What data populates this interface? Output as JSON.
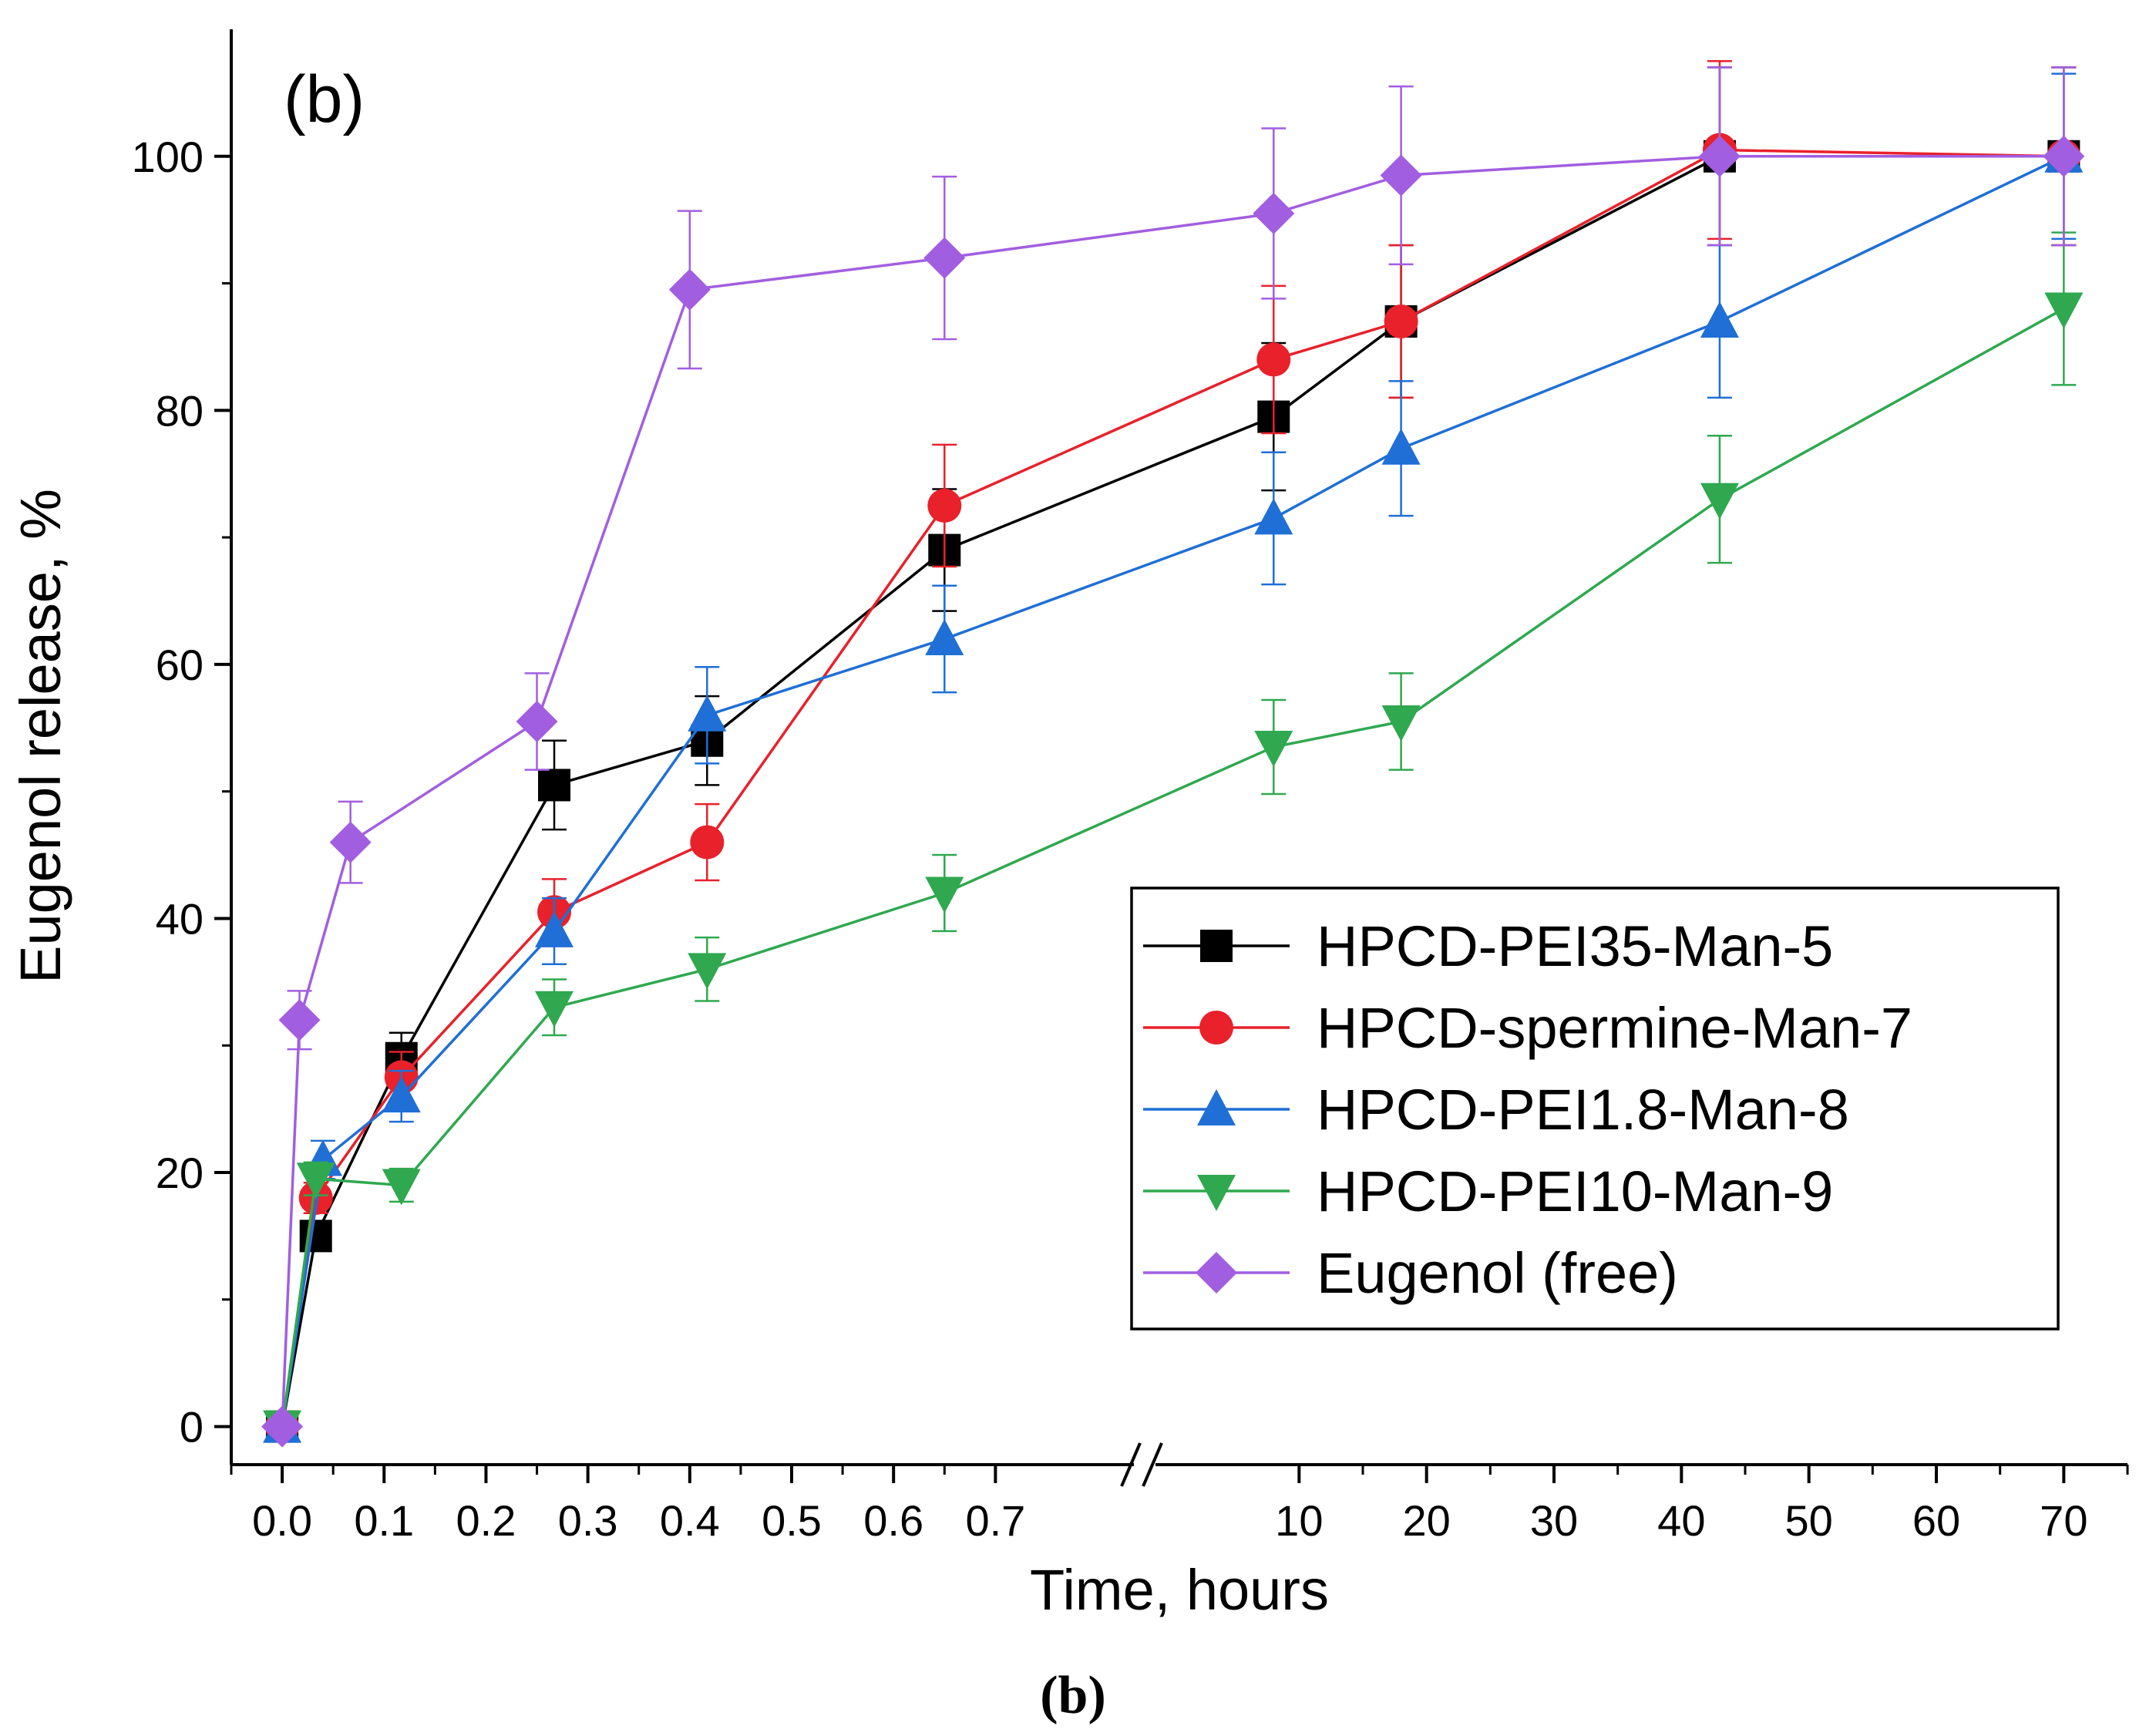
{
  "chart_data": {
    "type": "line",
    "panel_label": "(b)",
    "caption": "(b)",
    "xlabel": "Time, hours",
    "ylabel": "Eugenol release, %",
    "ylim": [
      -3,
      110
    ],
    "yticks": [
      0,
      20,
      40,
      60,
      80,
      100
    ],
    "x_segments": [
      {
        "range": [
          -0.05,
          0.82
        ],
        "ticks": [
          0.0,
          0.1,
          0.2,
          0.3,
          0.4,
          0.5,
          0.6,
          0.7
        ],
        "tick_labels": [
          "0.0",
          "0.1",
          "0.2",
          "0.3",
          "0.4",
          "0.5",
          "0.6",
          "0.7"
        ]
      },
      {
        "range": [
          0,
          75
        ],
        "ticks": [
          10,
          20,
          30,
          40,
          50,
          60,
          70
        ],
        "tick_labels": [
          "10",
          "20",
          "30",
          "40",
          "50",
          "60",
          "70"
        ]
      }
    ],
    "axis_break": "between 0.7 and 10",
    "legend_position": "center-right",
    "series": [
      {
        "name": "HPCD-PEI35-Man-5",
        "color": "#000000",
        "marker": "square",
        "points": [
          {
            "x": 0.0,
            "y": 0,
            "err": 0.5
          },
          {
            "x": 0.033,
            "y": 15,
            "err": 1
          },
          {
            "x": 0.117,
            "y": 29,
            "err": 2
          },
          {
            "x": 0.267,
            "y": 50.5,
            "err": 3.5
          },
          {
            "x": 0.417,
            "y": 54,
            "err": 3.5
          },
          {
            "x": 0.65,
            "y": 69,
            "err": 4.8
          },
          {
            "x": 8,
            "y": 79.5,
            "err": 5.8
          },
          {
            "x": 18,
            "y": 87,
            "err": 6
          },
          {
            "x": 43,
            "y": 100,
            "err": 7
          },
          {
            "x": 70,
            "y": 100,
            "err": 7
          }
        ]
      },
      {
        "name": "HPCD-spermine-Man-7",
        "color": "#e8212b",
        "marker": "circle",
        "points": [
          {
            "x": 0.0,
            "y": 0,
            "err": 0.5
          },
          {
            "x": 0.033,
            "y": 18,
            "err": 1.2
          },
          {
            "x": 0.117,
            "y": 27.5,
            "err": 2
          },
          {
            "x": 0.267,
            "y": 40.5,
            "err": 2.6
          },
          {
            "x": 0.417,
            "y": 46,
            "err": 3
          },
          {
            "x": 0.65,
            "y": 72.5,
            "err": 4.8
          },
          {
            "x": 8,
            "y": 84,
            "err": 5.8
          },
          {
            "x": 18,
            "y": 87,
            "err": 6
          },
          {
            "x": 43,
            "y": 100.5,
            "err": 7
          },
          {
            "x": 70,
            "y": 100,
            "err": 7
          }
        ]
      },
      {
        "name": "HPCD-PEI1.8-Man-8",
        "color": "#1f6fd6",
        "marker": "triangle-up",
        "points": [
          {
            "x": 0.0,
            "y": 0,
            "err": 0.5
          },
          {
            "x": 0.04,
            "y": 21,
            "err": 1.5
          },
          {
            "x": 0.117,
            "y": 26,
            "err": 2
          },
          {
            "x": 0.267,
            "y": 39,
            "err": 2.6
          },
          {
            "x": 0.417,
            "y": 56,
            "err": 3.8
          },
          {
            "x": 0.65,
            "y": 62,
            "err": 4.2
          },
          {
            "x": 8,
            "y": 71.5,
            "err": 5.2
          },
          {
            "x": 18,
            "y": 77,
            "err": 5.3
          },
          {
            "x": 43,
            "y": 87,
            "err": 6
          },
          {
            "x": 70,
            "y": 100,
            "err": 6.5
          }
        ]
      },
      {
        "name": "HPCD-PEI10-Man-9",
        "color": "#2fa84f",
        "marker": "triangle-down",
        "points": [
          {
            "x": 0.0,
            "y": 0,
            "err": 0.5
          },
          {
            "x": 0.033,
            "y": 19.5,
            "err": 1.3
          },
          {
            "x": 0.117,
            "y": 19,
            "err": 1.3
          },
          {
            "x": 0.267,
            "y": 33,
            "err": 2.2
          },
          {
            "x": 0.417,
            "y": 36,
            "err": 2.5
          },
          {
            "x": 0.65,
            "y": 42,
            "err": 3
          },
          {
            "x": 8,
            "y": 53.5,
            "err": 3.7
          },
          {
            "x": 18,
            "y": 55.5,
            "err": 3.8
          },
          {
            "x": 43,
            "y": 73,
            "err": 5
          },
          {
            "x": 70,
            "y": 88,
            "err": 6
          }
        ]
      },
      {
        "name": "Eugenol (free)",
        "color": "#a25ee0",
        "marker": "diamond",
        "points": [
          {
            "x": 0.0,
            "y": 0,
            "err": 0.5
          },
          {
            "x": 0.017,
            "y": 32,
            "err": 2.3
          },
          {
            "x": 0.067,
            "y": 46,
            "err": 3.2
          },
          {
            "x": 0.25,
            "y": 55.5,
            "err": 3.8
          },
          {
            "x": 0.4,
            "y": 89.5,
            "err": 6.2
          },
          {
            "x": 0.65,
            "y": 92,
            "err": 6.4
          },
          {
            "x": 8,
            "y": 95.5,
            "err": 6.7
          },
          {
            "x": 18,
            "y": 98.5,
            "err": 7
          },
          {
            "x": 43,
            "y": 100,
            "err": 7
          },
          {
            "x": 70,
            "y": 100,
            "err": 7
          }
        ]
      }
    ]
  }
}
